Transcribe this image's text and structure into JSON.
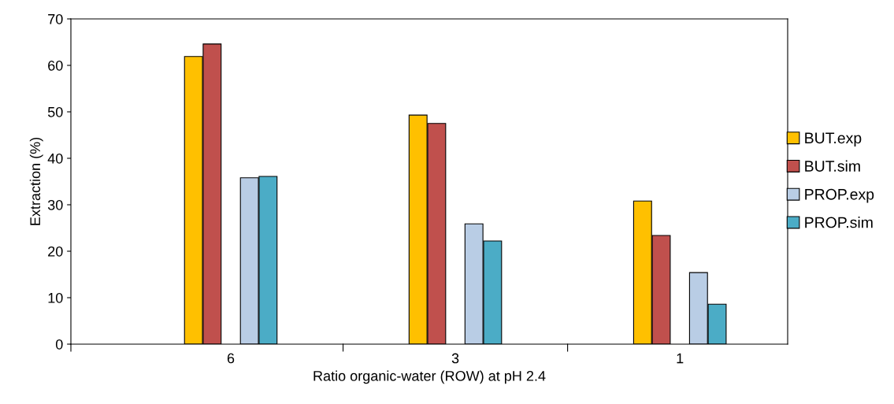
{
  "chart_data": {
    "type": "bar",
    "xlabel": "Ratio organic-water (ROW) at pH 2.4",
    "ylabel": "Extraction (%)",
    "categories": [
      "6",
      "3",
      "1"
    ],
    "series": [
      {
        "name": "BUT.exp",
        "color": "#ffc000",
        "values": [
          61.9,
          49.3,
          30.8
        ]
      },
      {
        "name": "BUT.sim",
        "color": "#c0504d",
        "values": [
          64.6,
          47.5,
          23.4
        ]
      },
      {
        "name": "PROP.exp",
        "color": "#b9cde5",
        "values": [
          35.8,
          25.9,
          15.4
        ]
      },
      {
        "name": "PROP.sim",
        "color": "#4bacc6",
        "values": [
          36.1,
          22.2,
          8.6
        ]
      }
    ],
    "ylim": [
      0,
      70
    ],
    "yticks": [
      0,
      10,
      20,
      30,
      40,
      50,
      60,
      70
    ],
    "grid": false,
    "legend": "right"
  }
}
